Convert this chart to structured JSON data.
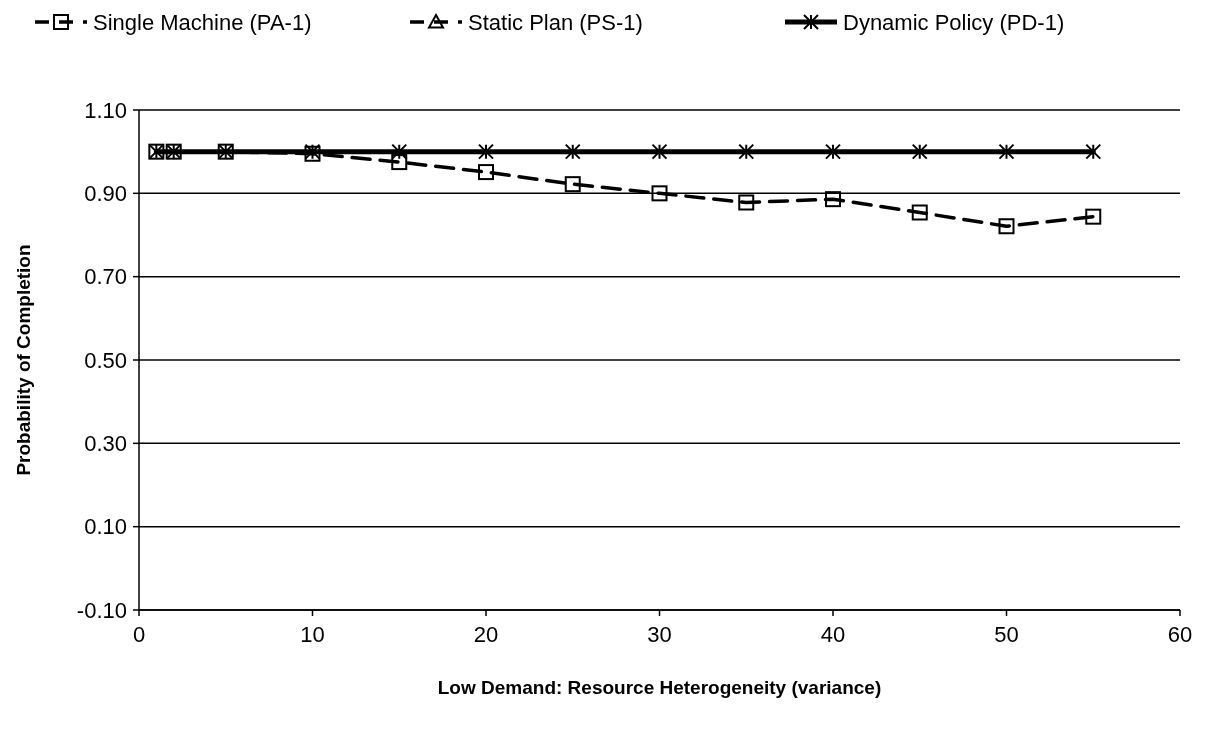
{
  "chart_data": {
    "type": "line",
    "xlabel": "Low Demand: Resource Heterogeneity (variance)",
    "ylabel": "Probability of Completion",
    "x": [
      1,
      2,
      5,
      10,
      15,
      20,
      25,
      30,
      35,
      40,
      45,
      50,
      55
    ],
    "series": [
      {
        "name": "Single Machine (PA-1)",
        "color": "#000000",
        "marker": "square",
        "line_style": "dashed",
        "values": [
          1.0,
          1.0,
          1.0,
          0.995,
          0.975,
          0.951,
          0.922,
          0.9,
          0.878,
          0.886,
          0.854,
          0.821,
          0.844
        ]
      },
      {
        "name": "Static Plan (PS-1)",
        "color": "#000000",
        "marker": "triangle",
        "line_style": "dashed",
        "values": [
          null,
          null,
          null,
          null,
          null,
          null,
          null,
          null,
          null,
          null,
          null,
          null,
          null
        ]
      },
      {
        "name": "Dynamic Policy (PD-1)",
        "color": "#000000",
        "marker": "cross",
        "line_style": "solid",
        "values": [
          1.0,
          1.0,
          1.0,
          1.0,
          1.0,
          1.0,
          1.0,
          1.0,
          1.0,
          1.0,
          1.0,
          1.0,
          1.0
        ]
      }
    ],
    "xlim": [
      0,
      60
    ],
    "xticks": [
      0,
      10,
      20,
      30,
      40,
      50,
      60
    ],
    "ylim": [
      -0.1,
      1.1
    ],
    "yticks": [
      {
        "value": -0.1,
        "label": "-0.10"
      },
      {
        "value": 0.1,
        "label": "0.10"
      },
      {
        "value": 0.3,
        "label": "0.30"
      },
      {
        "value": 0.5,
        "label": "0.50"
      },
      {
        "value": 0.7,
        "label": "0.70"
      },
      {
        "value": 0.9,
        "label": "0.90"
      },
      {
        "value": 1.1,
        "label": "1.10"
      }
    ],
    "grid": "y",
    "legend": "top"
  }
}
